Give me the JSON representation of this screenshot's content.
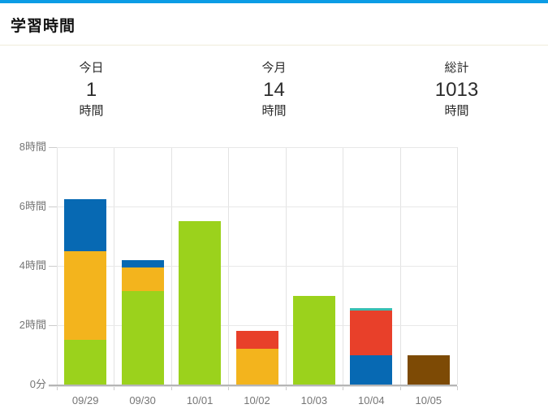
{
  "header": {
    "title": "学習時間"
  },
  "theme": {
    "accent_bar": "#0c9ce5",
    "divider": "#f0ecdb",
    "grid": "#e8e8e8",
    "axis_line": "#b5b5b5",
    "axis_text": "#757575",
    "stat_text": "#2b2b2b"
  },
  "stats": {
    "items": [
      {
        "label": "今日",
        "value": "1",
        "unit": "時間"
      },
      {
        "label": "今月",
        "value": "14",
        "unit": "時間"
      },
      {
        "label": "総計",
        "value": "1013",
        "unit": "時間"
      }
    ]
  },
  "chart_data": {
    "type": "bar",
    "stacked": true,
    "unit": "hours",
    "categories": [
      "09/29",
      "09/30",
      "10/01",
      "10/02",
      "10/03",
      "10/04",
      "10/05"
    ],
    "series": [
      {
        "name": "green",
        "color": "#9bd21c",
        "values": [
          1.5,
          3.15,
          5.5,
          0,
          3.0,
          0,
          0
        ]
      },
      {
        "name": "orange",
        "color": "#f3b41d",
        "values": [
          3.0,
          0.8,
          0,
          1.2,
          0,
          0,
          0
        ]
      },
      {
        "name": "blue",
        "color": "#0769b3",
        "values": [
          1.75,
          0.25,
          0,
          0,
          0,
          1.0,
          0
        ]
      },
      {
        "name": "red",
        "color": "#e8402a",
        "values": [
          0,
          0,
          0,
          0.6,
          0,
          1.5,
          0
        ]
      },
      {
        "name": "teal",
        "color": "#38beb2",
        "values": [
          0,
          0,
          0,
          0,
          0,
          0.08,
          0
        ]
      },
      {
        "name": "brown",
        "color": "#7d4a05",
        "values": [
          0,
          0,
          0,
          0,
          0,
          0,
          1.0
        ]
      }
    ],
    "totals": [
      6.25,
      4.2,
      5.5,
      1.8,
      3.0,
      2.58,
      1.0
    ],
    "ylim": [
      0,
      8
    ],
    "yticks": [
      {
        "value": 0,
        "label": "0分"
      },
      {
        "value": 2,
        "label": "2時間"
      },
      {
        "value": 4,
        "label": "4時間"
      },
      {
        "value": 6,
        "label": "6時間"
      },
      {
        "value": 8,
        "label": "8時間"
      }
    ],
    "grid": true,
    "legend": "none"
  }
}
